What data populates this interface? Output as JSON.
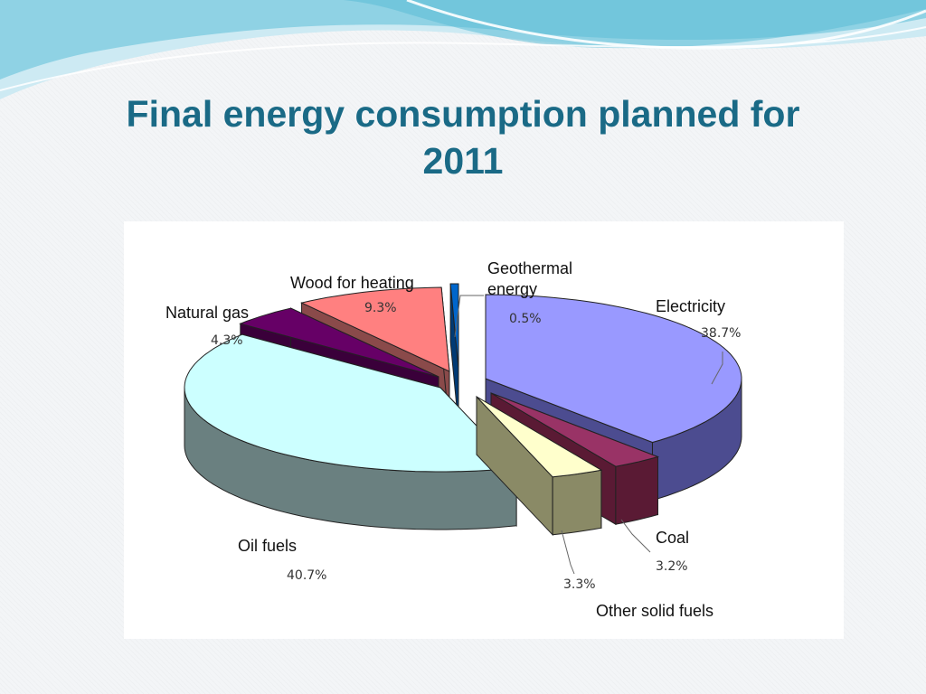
{
  "slide": {
    "title_line1": "Final energy consumption planned for",
    "title_line2": "2011"
  },
  "colors": {
    "title": "#1a6a86",
    "banner_light": "#bfe6f0",
    "banner_mid": "#7cc8dc"
  },
  "chart_data": {
    "type": "pie",
    "variant": "3d-exploded",
    "title": "",
    "slices": [
      {
        "name": "Electricity",
        "name_lines": [
          "Electricity"
        ],
        "value": 38.7,
        "label": "38.7%",
        "top_color": "#9999ff",
        "side_color": "#4c4c90"
      },
      {
        "name": "Coal",
        "name_lines": [
          "Coal"
        ],
        "value": 3.2,
        "label": "3.2%",
        "top_color": "#993366",
        "side_color": "#5a1a34"
      },
      {
        "name": "Other solid fuels",
        "name_lines": [
          "Other solid fuels"
        ],
        "value": 3.3,
        "label": "3.3%",
        "top_color": "#ffffcc",
        "side_color": "#8a8a66"
      },
      {
        "name": "Oil fuels",
        "name_lines": [
          "Oil fuels"
        ],
        "value": 40.7,
        "label": "40.7%",
        "top_color": "#ccffff",
        "side_color": "#6a8080"
      },
      {
        "name": "Natural gas",
        "name_lines": [
          "Natural gas"
        ],
        "value": 4.3,
        "label": "4.3%",
        "top_color": "#660066",
        "side_color": "#3a003a"
      },
      {
        "name": "Wood for heating",
        "name_lines": [
          "Wood for heating"
        ],
        "value": 9.3,
        "label": "9.3%",
        "top_color": "#ff8080",
        "side_color": "#8a4a4a"
      },
      {
        "name": "Geothermal energy",
        "name_lines": [
          "Geothermal",
          "energy"
        ],
        "value": 0.5,
        "label": "0.5%",
        "top_color": "#0066cc",
        "side_color": "#003a74"
      }
    ]
  }
}
